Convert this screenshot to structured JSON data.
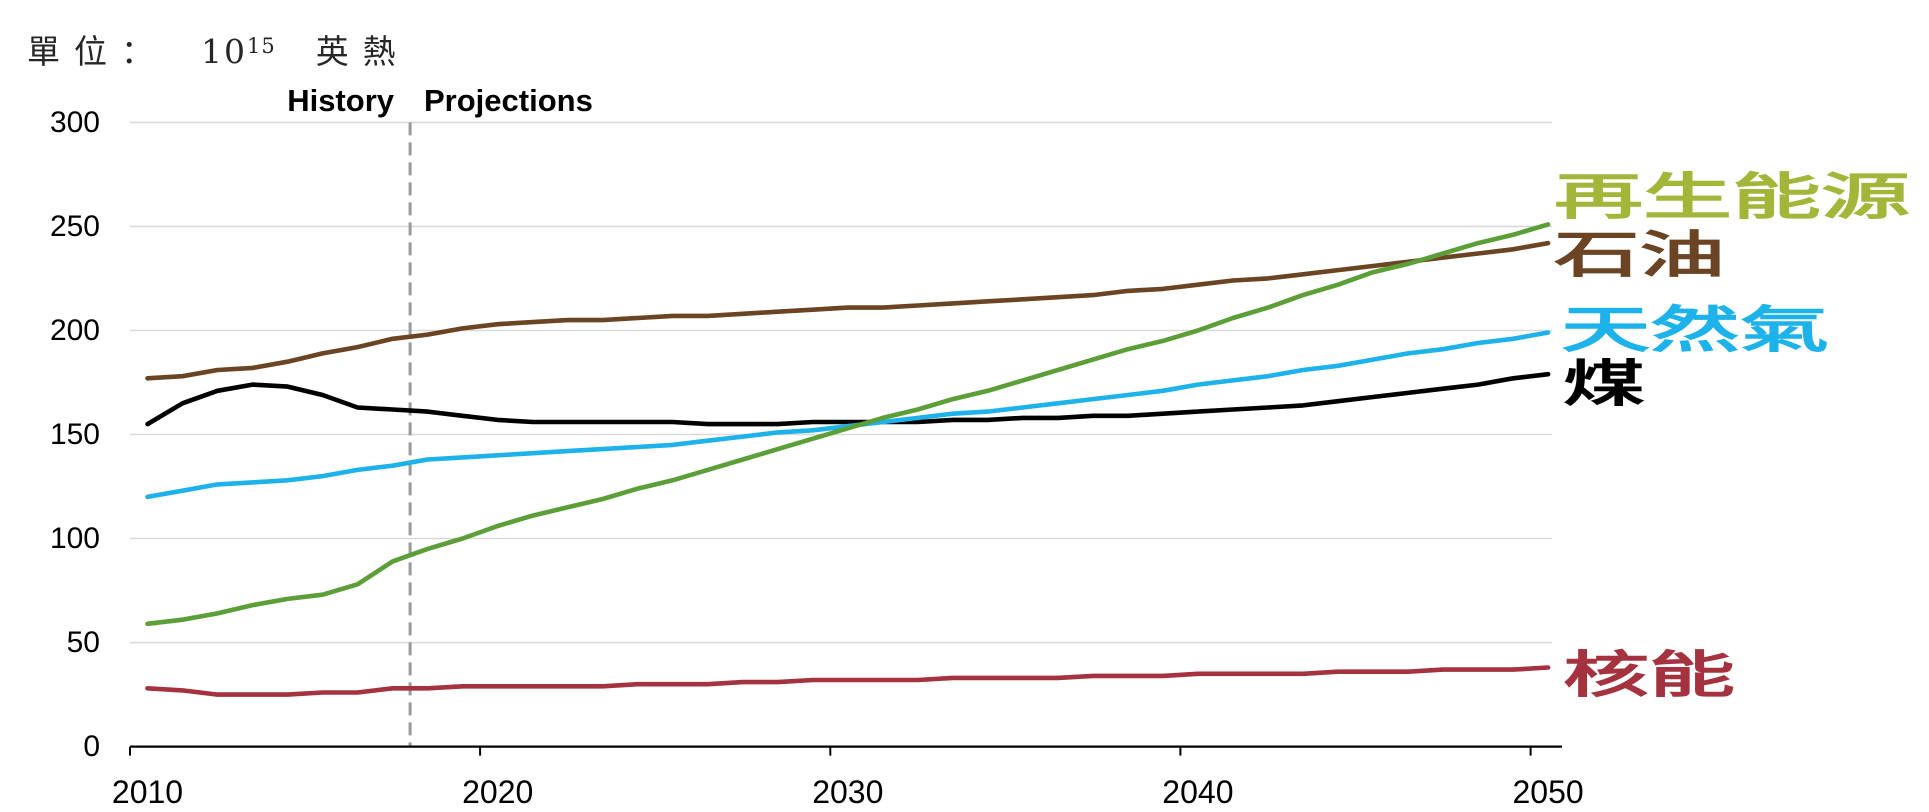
{
  "chart_data": {
    "type": "line",
    "unit_label": {
      "prefix": "單位：",
      "base": "10",
      "exponent": "15",
      "suffix": "英熱"
    },
    "annotations": [
      {
        "text": "History"
      },
      {
        "text": "Projections"
      }
    ],
    "divider": {
      "x": 2017.5,
      "style": "dashed"
    },
    "x": [
      2010,
      2011,
      2012,
      2013,
      2014,
      2015,
      2016,
      2017,
      2018,
      2019,
      2020,
      2021,
      2022,
      2023,
      2024,
      2025,
      2026,
      2027,
      2028,
      2029,
      2030,
      2031,
      2032,
      2033,
      2034,
      2035,
      2036,
      2037,
      2038,
      2039,
      2040,
      2041,
      2042,
      2043,
      2044,
      2045,
      2046,
      2047,
      2048,
      2049,
      2050
    ],
    "x_ticks": [
      2010,
      2020,
      2030,
      2040,
      2050
    ],
    "xlim": [
      2009.5,
      2050.5
    ],
    "y_ticks": [
      0,
      50,
      100,
      150,
      200,
      250,
      300
    ],
    "ylim": [
      0,
      300
    ],
    "grid": true,
    "legend": "right",
    "series": [
      {
        "name": "再生能源",
        "color": "#5c9e37",
        "label_color": "#a4b63a",
        "values": [
          59,
          61,
          64,
          68,
          71,
          73,
          78,
          89,
          95,
          100,
          106,
          111,
          115,
          119,
          124,
          128,
          133,
          138,
          143,
          148,
          153,
          158,
          162,
          167,
          171,
          176,
          181,
          186,
          191,
          195,
          200,
          206,
          211,
          217,
          222,
          228,
          232,
          237,
          242,
          246,
          251
        ]
      },
      {
        "name": "石油",
        "color": "#6b4424",
        "label_color": "#6b4424",
        "values": [
          177,
          178,
          181,
          182,
          185,
          189,
          192,
          196,
          198,
          201,
          203,
          204,
          205,
          205,
          206,
          207,
          207,
          208,
          209,
          210,
          211,
          211,
          212,
          213,
          214,
          215,
          216,
          217,
          219,
          220,
          222,
          224,
          225,
          227,
          229,
          231,
          233,
          235,
          237,
          239,
          242
        ]
      },
      {
        "name": "天然氣",
        "color": "#1eb2ea",
        "label_color": "#1eb2ea",
        "values": [
          120,
          123,
          126,
          127,
          128,
          130,
          133,
          135,
          138,
          139,
          140,
          141,
          142,
          143,
          144,
          145,
          147,
          149,
          151,
          152,
          154,
          156,
          158,
          160,
          161,
          163,
          165,
          167,
          169,
          171,
          174,
          176,
          178,
          181,
          183,
          186,
          189,
          191,
          194,
          196,
          199
        ]
      },
      {
        "name": "煤",
        "color": "#000000",
        "label_color": "#000000",
        "values": [
          155,
          165,
          171,
          174,
          173,
          169,
          163,
          162,
          161,
          159,
          157,
          156,
          156,
          156,
          156,
          156,
          155,
          155,
          155,
          156,
          156,
          156,
          156,
          157,
          157,
          158,
          158,
          159,
          159,
          160,
          161,
          162,
          163,
          164,
          166,
          168,
          170,
          172,
          174,
          177,
          179
        ]
      },
      {
        "name": "核能",
        "color": "#a5323f",
        "label_color": "#a5323f",
        "values": [
          28,
          27,
          25,
          25,
          25,
          26,
          26,
          28,
          28,
          29,
          29,
          29,
          29,
          29,
          30,
          30,
          30,
          31,
          31,
          32,
          32,
          32,
          32,
          33,
          33,
          33,
          33,
          34,
          34,
          34,
          35,
          35,
          35,
          35,
          36,
          36,
          36,
          37,
          37,
          37,
          38
        ]
      }
    ]
  }
}
